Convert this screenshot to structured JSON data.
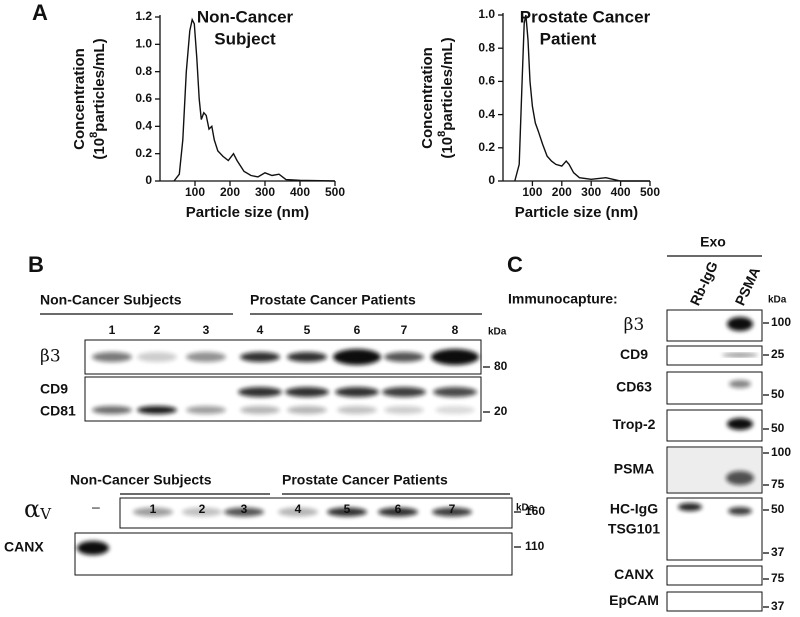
{
  "panels": {
    "A": "A",
    "B": "B",
    "C": "C"
  },
  "chart_data": [
    {
      "type": "line",
      "title": [
        "Non-Cancer",
        "Subject"
      ],
      "ylabel": {
        "line1": "Concentration",
        "pre": "(10",
        "sup": "8",
        "post": "particles/mL)"
      },
      "xlabel": "Particle size (nm)",
      "x": [
        40,
        55,
        65,
        75,
        85,
        92,
        98,
        105,
        112,
        118,
        125,
        132,
        140,
        148,
        155,
        165,
        180,
        195,
        210,
        220,
        240,
        260,
        280,
        300,
        320,
        340,
        360,
        400,
        500
      ],
      "series": [
        {
          "name": "Non-Cancer Subject",
          "color": "#111111",
          "values": [
            0,
            0.05,
            0.3,
            0.8,
            1.1,
            1.18,
            1.15,
            0.9,
            0.6,
            0.45,
            0.5,
            0.48,
            0.38,
            0.4,
            0.3,
            0.22,
            0.18,
            0.15,
            0.2,
            0.15,
            0.07,
            0.04,
            0.03,
            0.06,
            0.04,
            0.05,
            0.01,
            0.005,
            0
          ]
        }
      ],
      "xlim": [
        0,
        500
      ],
      "xticks": [
        100,
        200,
        300,
        400,
        500
      ],
      "ylim": [
        0,
        1.2
      ],
      "yticks": [
        0,
        0.2,
        0.4,
        0.6,
        0.8,
        {
          "value": 1,
          "label": "1.0"
        },
        1.2
      ]
    },
    {
      "type": "line",
      "title": [
        "Prostate Cancer",
        "Patient"
      ],
      "ylabel": {
        "line1": "Concentration",
        "pre": "(10",
        "sup": "8",
        "post": "particles/mL)"
      },
      "xlabel": "Particle size (nm)",
      "x": [
        40,
        55,
        65,
        72,
        78,
        85,
        92,
        100,
        110,
        120,
        135,
        150,
        165,
        180,
        200,
        215,
        225,
        240,
        260,
        300,
        350,
        400,
        500
      ],
      "series": [
        {
          "name": "Prostate Cancer Patient",
          "color": "#111111",
          "values": [
            0,
            0.1,
            0.6,
            0.95,
            1.0,
            0.85,
            0.6,
            0.45,
            0.35,
            0.3,
            0.22,
            0.15,
            0.12,
            0.1,
            0.09,
            0.12,
            0.1,
            0.05,
            0.02,
            0.01,
            0.02,
            0,
            0
          ]
        }
      ],
      "xlim": [
        0,
        500
      ],
      "xticks": [
        100,
        200,
        300,
        400,
        500
      ],
      "ylim": [
        0,
        1
      ],
      "yticks": [
        0,
        0.2,
        0.4,
        0.6,
        0.8,
        {
          "value": 1,
          "label": "1.0"
        }
      ]
    }
  ],
  "blot_b1": {
    "group1": "Non-Cancer Subjects",
    "group2": "Prostate Cancer Patients",
    "lanes": [
      "1",
      "2",
      "3",
      "4",
      "5",
      "6",
      "7",
      "8"
    ],
    "kda_title": "kDa",
    "rows": [
      {
        "label": "β3"
      },
      {
        "label": "CD9"
      },
      {
        "label": "CD81"
      }
    ],
    "kda": [
      "80",
      "20"
    ]
  },
  "blot_b2": {
    "group1": "Non-Cancer Subjects",
    "group2": "Prostate Cancer Patients",
    "lanes": [
      "1",
      "2",
      "3",
      "4",
      "5",
      "6",
      "7"
    ],
    "kda_title": "kDa",
    "rows": [
      {
        "label": "α",
        "sub": "V",
        "blank": "–"
      },
      {
        "label": "CANX"
      }
    ],
    "kda": [
      "160",
      "110"
    ]
  },
  "blot_c": {
    "header": "Exo",
    "immunocapture": "Immunocapture:",
    "lanes": [
      "Rb-IgG",
      "PSMA"
    ],
    "kda_title": "kDa",
    "rows": [
      {
        "label": [
          "β3"
        ],
        "kda": [
          "100"
        ]
      },
      {
        "label": [
          "CD9"
        ],
        "kda": [
          "25"
        ]
      },
      {
        "label": [
          "CD63"
        ],
        "kda": [
          "50"
        ]
      },
      {
        "label": [
          "Trop-2"
        ],
        "kda": [
          "50"
        ]
      },
      {
        "label": [
          "PSMA"
        ],
        "kda": [
          "100",
          "75"
        ]
      },
      {
        "label": [
          "HC-IgG",
          "TSG101"
        ],
        "kda": [
          "50",
          "37"
        ]
      },
      {
        "label": [
          "CANX"
        ],
        "kda": [
          "75"
        ]
      },
      {
        "label": [
          "EpCAM"
        ],
        "kda": [
          "37"
        ]
      }
    ]
  }
}
